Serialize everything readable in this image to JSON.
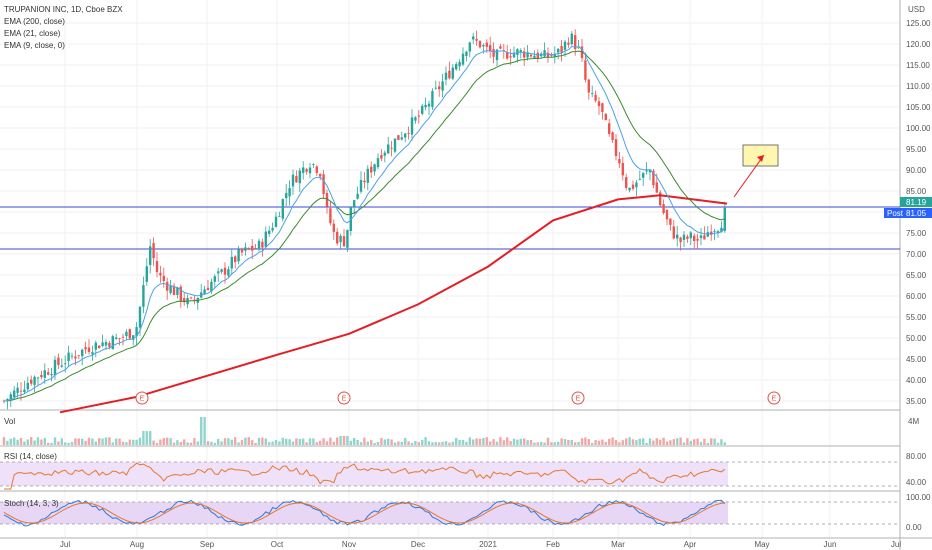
{
  "legend": {
    "symbol": "TRUPANION INC, 1D, Cboe BZX",
    "ema200": "EMA (200, close)",
    "ema21": "EMA (21, close)",
    "ema9": "EMA (9, close, 0)"
  },
  "panes": {
    "volume_label": "Vol",
    "volume_axis": "4M",
    "rsi_label": "RSI (14, close)",
    "rsi_axis": [
      "80.00",
      "40.00"
    ],
    "stoch_label": "Stoch (14, 3, 3)",
    "stoch_axis": [
      "100.00",
      "0.00"
    ]
  },
  "price_axis": {
    "currency": "USD",
    "ticks": [
      "125.00",
      "120.00",
      "115.00",
      "110.00",
      "105.00",
      "100.00",
      "95.00",
      "90.00",
      "85.00",
      "80.00",
      "75.00",
      "70.00",
      "65.00",
      "60.00",
      "55.00",
      "50.00",
      "45.00",
      "40.00",
      "35.00"
    ],
    "last_price_tag": "81.19",
    "post_label": "Post",
    "post_price_tag": "81.05"
  },
  "time_axis": [
    "Jul",
    "Aug",
    "Sep",
    "Oct",
    "Nov",
    "Dec",
    "2021",
    "Feb",
    "Mar",
    "Apr",
    "May",
    "Jun",
    "Jul"
  ],
  "earnings_markers": [
    "E",
    "E",
    "E",
    "E"
  ],
  "colors": {
    "up": "#26a69a",
    "down": "#ef5350",
    "ema200": "#e31e24",
    "ema21": "#3a8a2c",
    "ema9": "#4aa3e8",
    "hline": "#3848d8",
    "target_box": "#fff7b0",
    "rsi": "#e8772a",
    "stoch_k": "#2d7bd4",
    "stoch_d": "#e8772a",
    "band": "#e8d6f7"
  },
  "chart_data": {
    "type": "candlestick",
    "title": "TRUPANION INC, 1D, Cboe BZX",
    "ylabel": "USD",
    "ylim": [
      32,
      127
    ],
    "x": [
      "Jun",
      "Jul",
      "Aug",
      "Sep",
      "Oct",
      "Nov",
      "Dec",
      "2021",
      "Feb",
      "Mar",
      "Apr"
    ],
    "series": [
      {
        "name": "EMA (200, close)",
        "x": [
          "Jul",
          "Aug",
          "Sep",
          "Oct",
          "Nov",
          "Dec",
          "2021",
          "Feb",
          "Mar",
          "Apr"
        ],
        "values": [
          32,
          36,
          41,
          46,
          51,
          58,
          67,
          78,
          83,
          82
        ]
      },
      {
        "name": "EMA (21, close)",
        "x": [
          "Jul",
          "Aug",
          "Sep",
          "Oct",
          "Nov",
          "Dec",
          "2021",
          "Feb",
          "Mar",
          "Apr"
        ],
        "values": [
          40,
          52,
          60,
          70,
          78,
          92,
          112,
          116,
          95,
          80
        ]
      },
      {
        "name": "EMA (9, close, 0)",
        "x": [
          "Jul",
          "Aug",
          "Sep",
          "Oct",
          "Nov",
          "Dec",
          "2021",
          "Feb",
          "Mar",
          "Apr"
        ],
        "values": [
          43,
          56,
          64,
          76,
          75,
          100,
          118,
          117,
          89,
          77
        ]
      }
    ],
    "candles_close_approx": [
      [
        "Jun",
        35
      ],
      [
        "Jul",
        43
      ],
      [
        "Aug",
        60
      ],
      [
        "Sep",
        65
      ],
      [
        "Oct",
        78
      ],
      [
        "Nov",
        73
      ],
      [
        "Dec",
        112
      ],
      [
        "2021",
        118
      ],
      [
        "Feb",
        118
      ],
      [
        "Mar",
        85
      ],
      [
        "Apr",
        81
      ]
    ],
    "horizontal_lines": [
      80,
      70
    ],
    "target_box": [
      90,
      95
    ],
    "last_price": 81.19,
    "post_price": 81.05
  }
}
